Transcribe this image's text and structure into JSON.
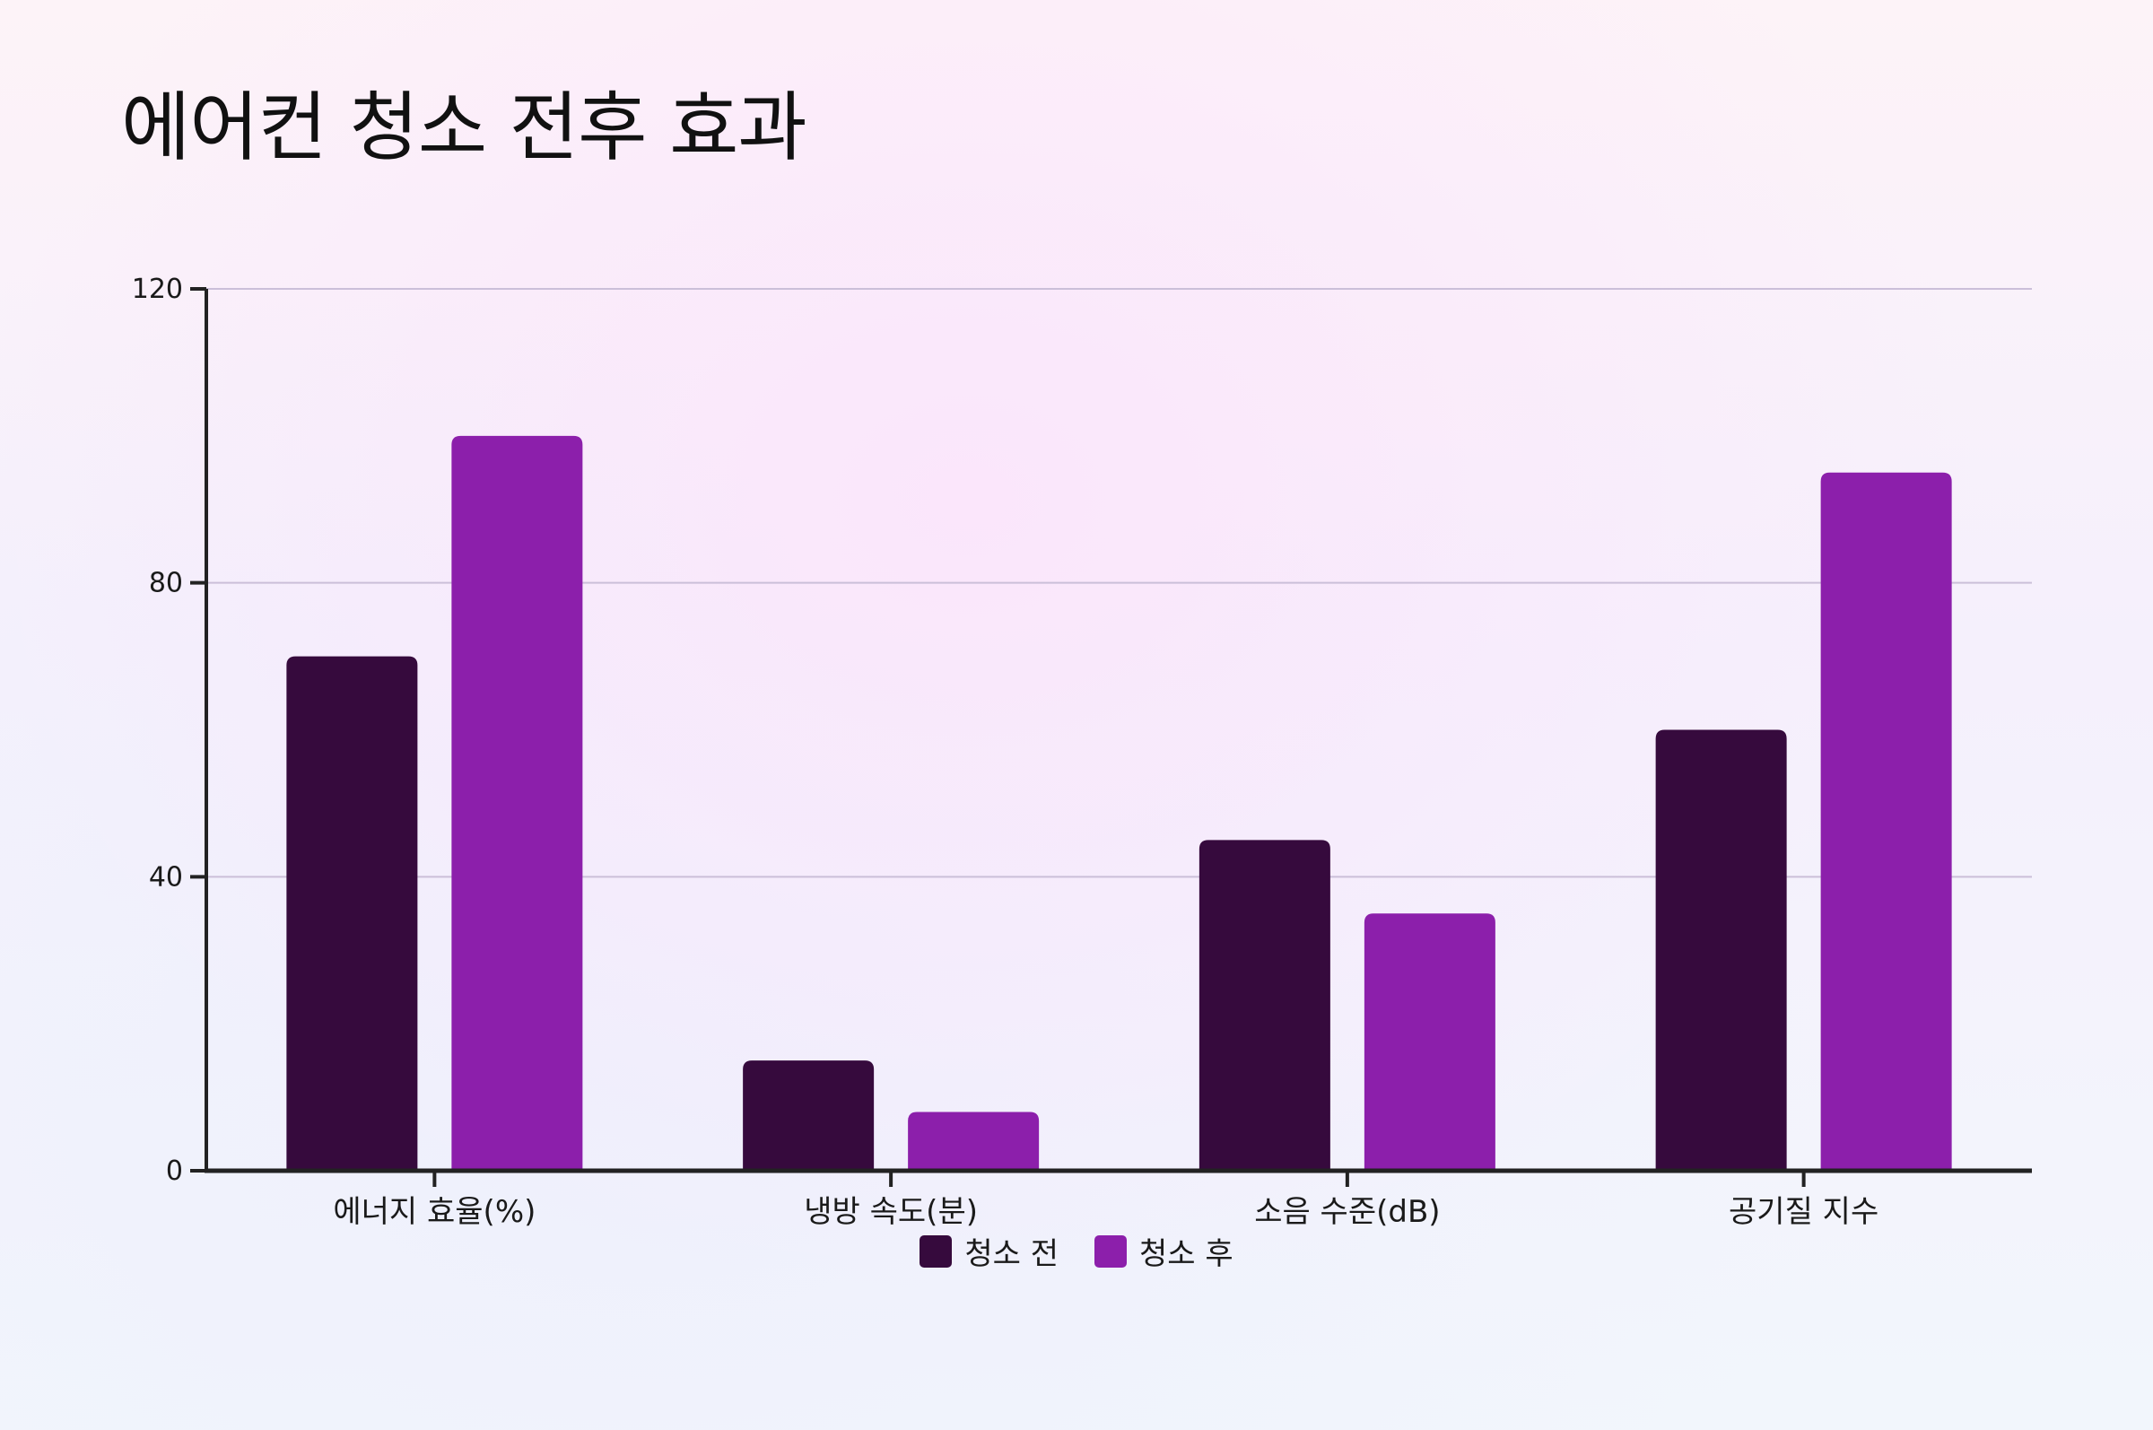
{
  "title": "에어컨 청소 전후 효과",
  "colors": {
    "before": "#360a3d",
    "after": "#8c1fab",
    "grid": "#cbbfd9",
    "axis": "#222222"
  },
  "legend": {
    "before": "청소 전",
    "after": "청소 후"
  },
  "chart_data": {
    "type": "bar",
    "title": "에어컨 청소 전후 효과",
    "xlabel": "",
    "ylabel": "",
    "categories": [
      "에너지 효율(%)",
      "냉방 속도(분)",
      "소음 수준(dB)",
      "공기질 지수"
    ],
    "series": [
      {
        "name": "청소 전",
        "values": [
          70,
          15,
          45,
          60
        ]
      },
      {
        "name": "청소 후",
        "values": [
          100,
          8,
          35,
          95
        ]
      }
    ],
    "ylim": [
      0,
      120
    ],
    "yticks": [
      "0",
      "40",
      "80",
      "120"
    ],
    "grid": true,
    "legend_position": "bottom-center"
  }
}
